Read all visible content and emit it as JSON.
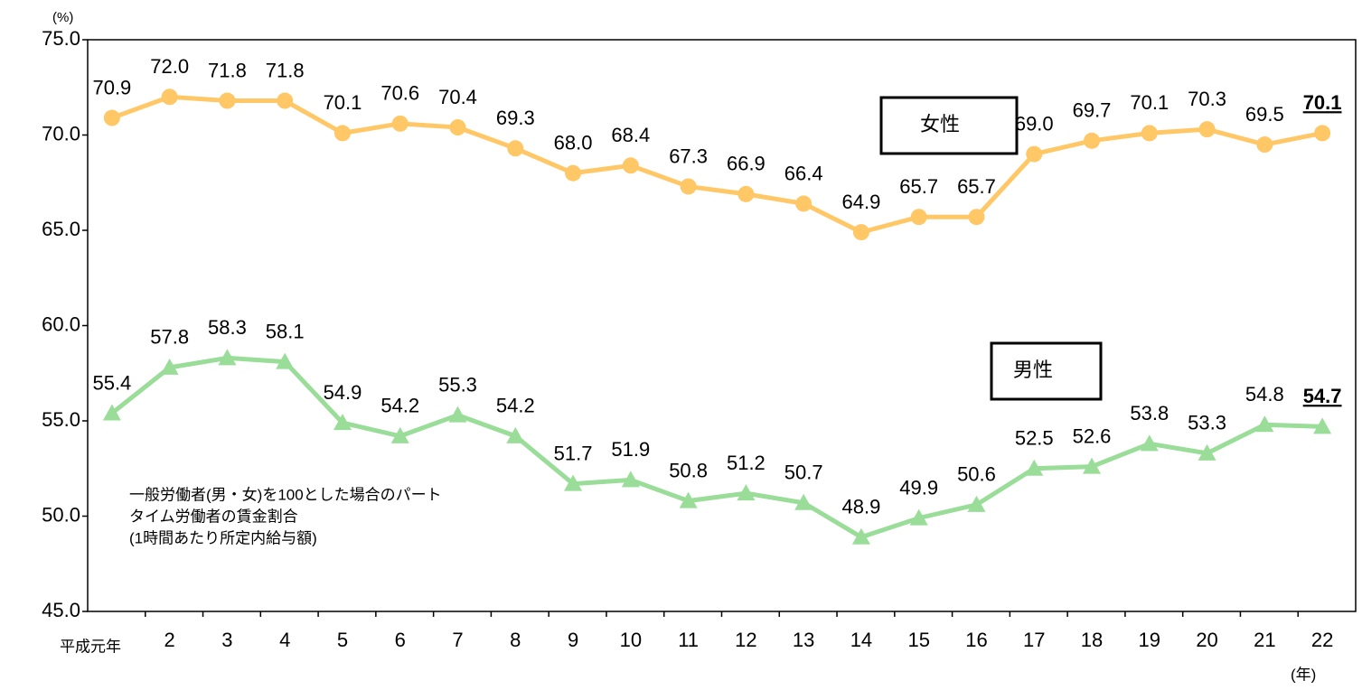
{
  "chart_data": {
    "type": "line",
    "y_unit": "(%)",
    "x_unit": "(年)",
    "note": [
      "一般労働者(男・女)を100とした場合のパート",
      "タイム労働者の賃金割合",
      "(1時間あたり所定内給与額)"
    ],
    "categories": [
      "平成元年",
      "2",
      "3",
      "4",
      "5",
      "6",
      "7",
      "8",
      "9",
      "10",
      "11",
      "12",
      "13",
      "14",
      "15",
      "16",
      "17",
      "18",
      "19",
      "20",
      "21",
      "22"
    ],
    "series": [
      {
        "name": "女性",
        "color": "#ffc766",
        "marker": "circle",
        "values": [
          70.9,
          72.0,
          71.8,
          71.8,
          70.1,
          70.6,
          70.4,
          69.3,
          68.0,
          68.4,
          67.3,
          66.9,
          66.4,
          64.9,
          65.7,
          65.7,
          69.0,
          69.7,
          70.1,
          70.3,
          69.5,
          70.1
        ],
        "value_labels": [
          "70.9",
          "72.0",
          "71.8",
          "71.8",
          "70.1",
          "70.6",
          "70.4",
          "69.3",
          "68.0",
          "68.4",
          "67.3",
          "66.9",
          "66.4",
          "64.9",
          "65.7",
          "65.7",
          "69.0",
          "69.7",
          "70.1",
          "70.3",
          "69.5",
          "70.1"
        ]
      },
      {
        "name": "男性",
        "color": "#99dd99",
        "marker": "triangle",
        "values": [
          55.4,
          57.8,
          58.3,
          58.1,
          54.9,
          54.2,
          55.3,
          54.2,
          51.7,
          51.9,
          50.8,
          51.2,
          50.7,
          48.9,
          49.9,
          50.6,
          52.5,
          52.6,
          53.8,
          53.3,
          54.8,
          54.7
        ],
        "value_labels": [
          "55.4",
          "57.8",
          "58.3",
          "58.1",
          "54.9",
          "54.2",
          "55.3",
          "54.2",
          "51.7",
          "51.9",
          "50.8",
          "51.2",
          "50.7",
          "48.9",
          "49.9",
          "50.6",
          "52.5",
          "52.6",
          "53.8",
          "53.3",
          "54.8",
          "54.7"
        ]
      }
    ],
    "ylim": [
      45,
      75
    ],
    "yticks": [
      {
        "value": 45,
        "label": "45.0"
      },
      {
        "value": 50,
        "label": "50.0"
      },
      {
        "value": 55,
        "label": "55.0"
      },
      {
        "value": 60,
        "label": "60.0"
      },
      {
        "value": 65,
        "label": "65.0"
      },
      {
        "value": 70,
        "label": "70.0"
      },
      {
        "value": 75,
        "label": "75.0"
      }
    ],
    "grid": false,
    "highlight_last": true
  }
}
